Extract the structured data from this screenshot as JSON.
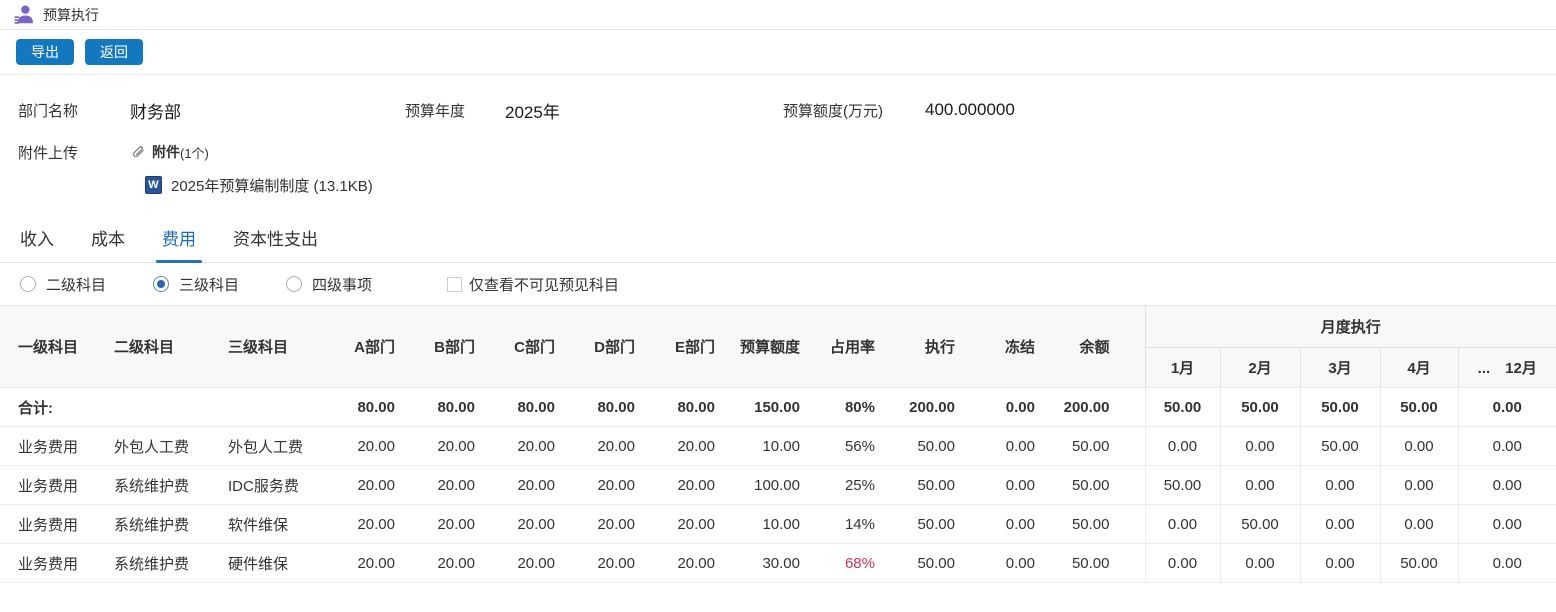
{
  "header": {
    "title": "预算执行"
  },
  "toolbar": {
    "export_label": "导出",
    "back_label": "返回"
  },
  "form": {
    "dept_label": "部门名称",
    "dept_value": "财务部",
    "year_label": "预算年度",
    "year_value": "2025年",
    "amount_label": "预算额度(万元)",
    "amount_value": "400.000000",
    "attach_label": "附件上传",
    "attach_title": "附件",
    "attach_count": "(1个)",
    "file_icon_label": "W",
    "file_name": "2025年预算编制制度 (13.1KB)"
  },
  "tabs": [
    {
      "label": "收入",
      "active": false
    },
    {
      "label": "成本",
      "active": false
    },
    {
      "label": "费用",
      "active": true
    },
    {
      "label": "资本性支出",
      "active": false
    }
  ],
  "filters": {
    "radios": [
      {
        "label": "二级科目",
        "checked": false
      },
      {
        "label": "三级科目",
        "checked": true
      },
      {
        "label": "四级事项",
        "checked": false
      }
    ],
    "checkbox": {
      "label": "仅查看不可见预见科目",
      "checked": false
    }
  },
  "table": {
    "group_header": "月度执行",
    "columns": [
      "一级科目",
      "二级科目",
      "三级科目",
      "A部门",
      "B部门",
      "C部门",
      "D部门",
      "E部门",
      "预算额度",
      "占用率",
      "执行",
      "冻结",
      "余额"
    ],
    "month_columns": [
      "1月",
      "2月",
      "3月",
      "4月",
      "...　12月"
    ],
    "rows": [
      {
        "bold": true,
        "cells": [
          "合计:",
          "",
          "",
          "80.00",
          "80.00",
          "80.00",
          "80.00",
          "80.00",
          "150.00",
          "80%",
          "200.00",
          "0.00",
          "200.00",
          "50.00",
          "50.00",
          "50.00",
          "50.00",
          "0.00"
        ]
      },
      {
        "cells": [
          "业务费用",
          "外包人工费",
          "外包人工费",
          "20.00",
          "20.00",
          "20.00",
          "20.00",
          "20.00",
          "10.00",
          "56%",
          "50.00",
          "0.00",
          "50.00",
          "0.00",
          "0.00",
          "50.00",
          "0.00",
          "0.00"
        ]
      },
      {
        "cells": [
          "业务费用",
          "系统维护费",
          "IDC服务费",
          "20.00",
          "20.00",
          "20.00",
          "20.00",
          "20.00",
          "100.00",
          "25%",
          "50.00",
          "0.00",
          "50.00",
          "50.00",
          "0.00",
          "0.00",
          "0.00",
          "0.00"
        ]
      },
      {
        "cells": [
          "业务费用",
          "系统维护费",
          "软件维保",
          "20.00",
          "20.00",
          "20.00",
          "20.00",
          "20.00",
          "10.00",
          "14%",
          "50.00",
          "0.00",
          "50.00",
          "0.00",
          "50.00",
          "0.00",
          "0.00",
          "0.00"
        ]
      },
      {
        "red_cols": [
          9
        ],
        "cells": [
          "业务费用",
          "系统维护费",
          "硬件维保",
          "20.00",
          "20.00",
          "20.00",
          "20.00",
          "20.00",
          "30.00",
          "68%",
          "50.00",
          "0.00",
          "50.00",
          "0.00",
          "0.00",
          "0.00",
          "50.00",
          "0.00"
        ]
      }
    ]
  },
  "colors": {
    "accent_blue": "#1478be",
    "active_tab_blue": "#2272bc",
    "alert_red": "#d03350",
    "icon_purple": "#7a65c5"
  }
}
